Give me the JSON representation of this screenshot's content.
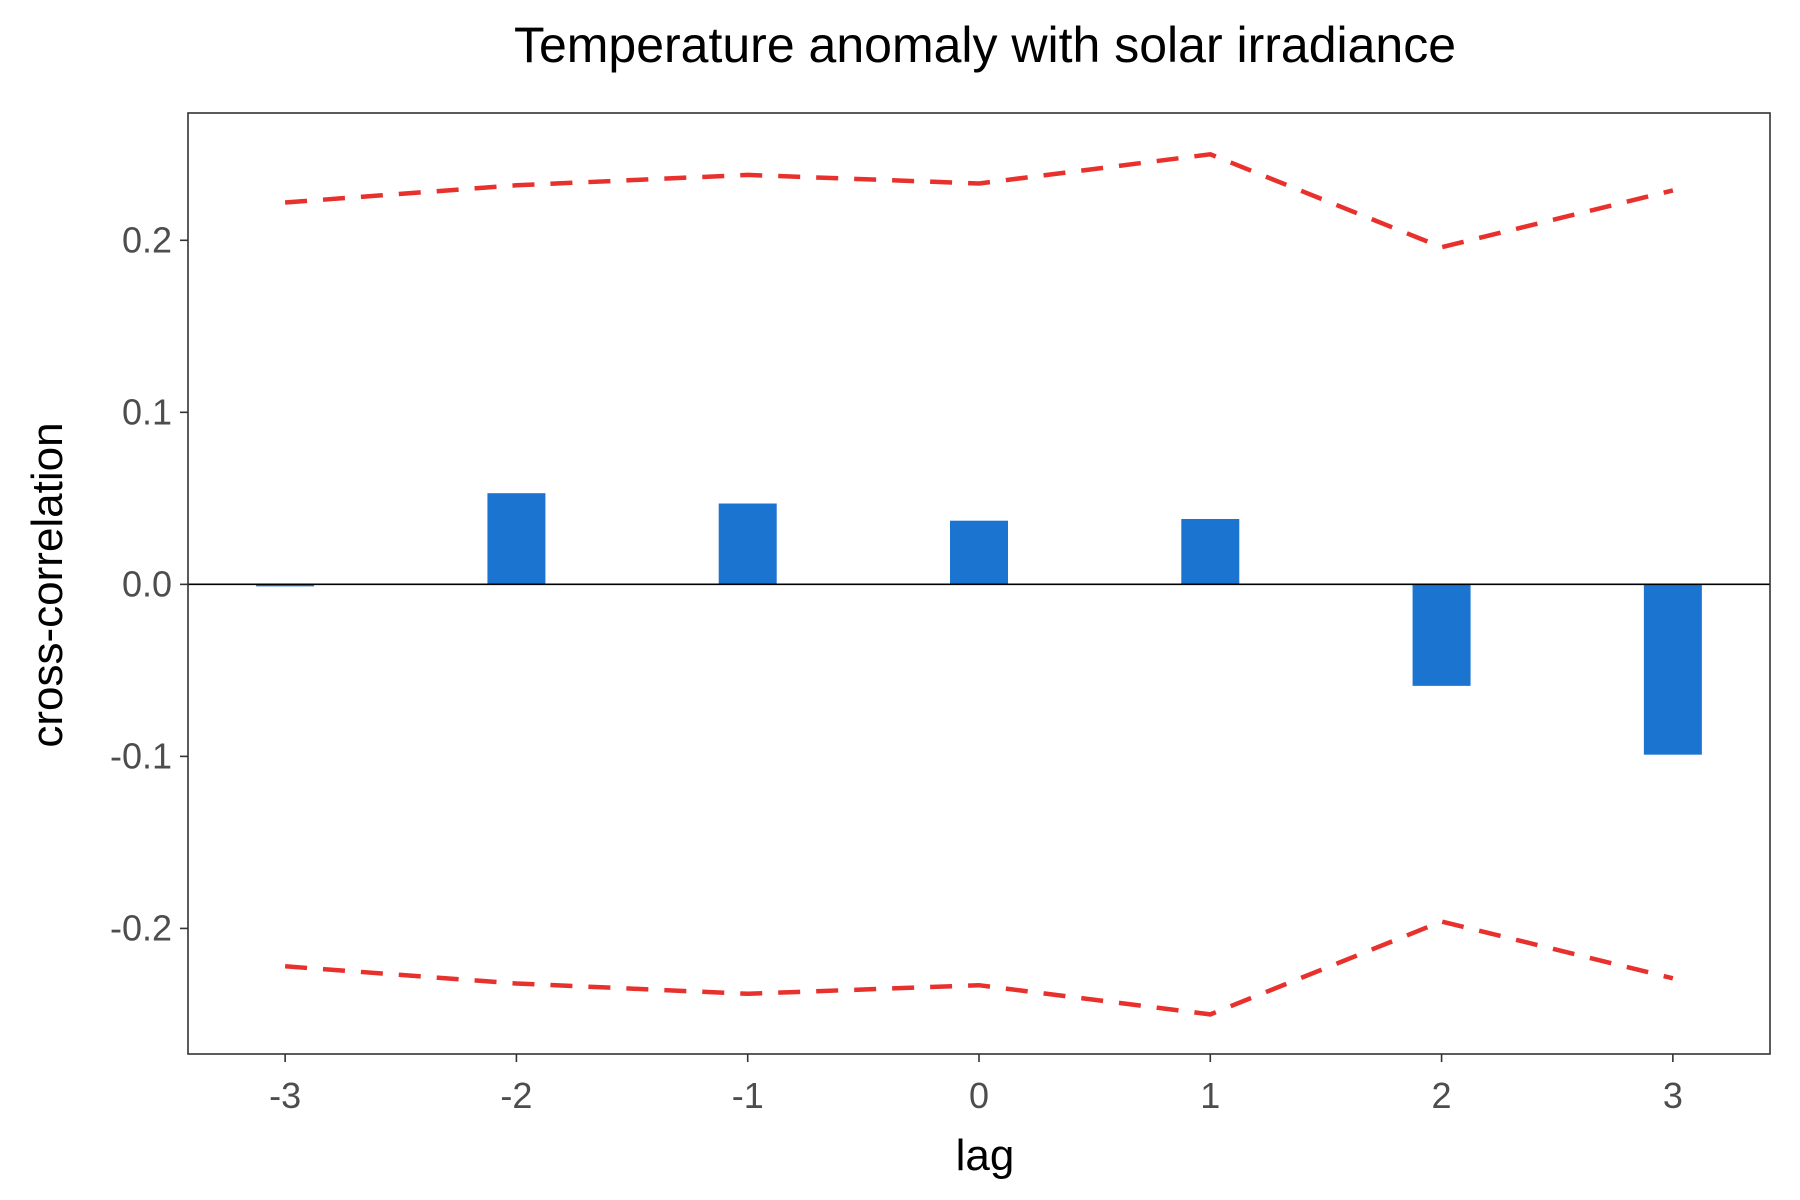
{
  "chart_data": {
    "type": "bar",
    "title": "Temperature anomaly with solar irradiance",
    "xlabel": "lag",
    "ylabel": "cross-correlation",
    "x": [
      -3,
      -2,
      -1,
      0,
      1,
      2,
      3
    ],
    "x_tick_labels": [
      "-3",
      "-2",
      "-1",
      "0",
      "1",
      "2",
      "3"
    ],
    "y_ticks": [
      -0.2,
      -0.1,
      0.0,
      0.1,
      0.2
    ],
    "y_tick_labels": [
      "-0.2",
      "-0.1",
      "0.0",
      "0.1",
      "0.2"
    ],
    "xlim": [
      -3.42,
      3.42
    ],
    "ylim": [
      -0.273,
      0.274
    ],
    "series": [
      {
        "type": "bar",
        "values": [
          -0.001,
          0.053,
          0.047,
          0.037,
          0.038,
          -0.059,
          -0.099
        ]
      },
      {
        "type": "line",
        "style": "dashed",
        "values": [
          0.222,
          0.232,
          0.238,
          0.233,
          0.25,
          0.196,
          0.229
        ]
      },
      {
        "type": "line",
        "style": "dashed",
        "values": [
          -0.222,
          -0.232,
          -0.238,
          -0.233,
          -0.25,
          -0.196,
          -0.229
        ]
      }
    ],
    "zero_line": true,
    "grid": false,
    "legend": "none",
    "colors": {
      "bar": "#1b75d0",
      "confidence_band": "#e8302c",
      "zero_line": "#000000",
      "panel_border": "#333333"
    }
  }
}
